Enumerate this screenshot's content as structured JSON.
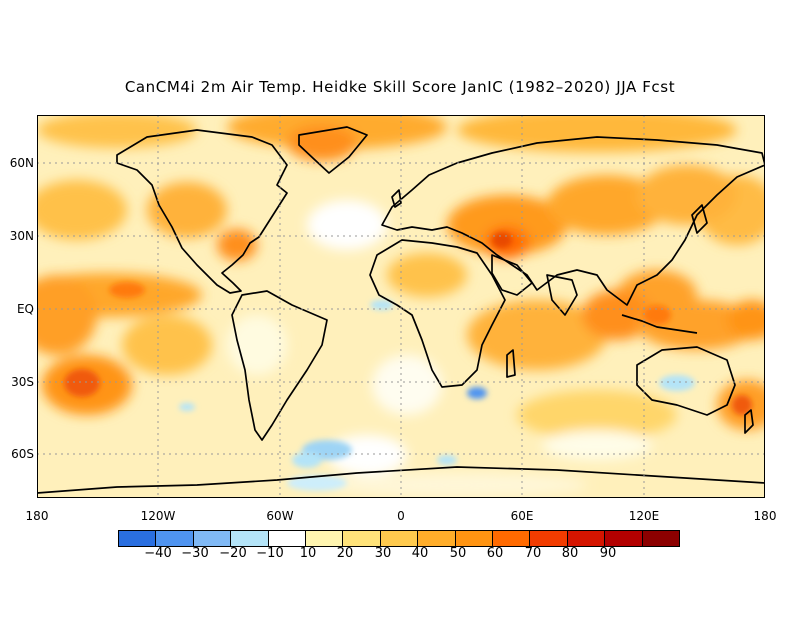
{
  "title": "CanCM4i 2m Air Temp. Heidke Skill Score JanIC (1982–2020) JJA Fcst",
  "lat_labels": [
    "60N",
    "30N",
    "EQ",
    "30S",
    "60S"
  ],
  "lon_labels": [
    "180",
    "120W",
    "60W",
    "0",
    "60E",
    "120E",
    "180"
  ],
  "colorbar": {
    "colors": [
      "#2a6fe0",
      "#4f94f0",
      "#80b9f5",
      "#b4e4f8",
      "#ffffff",
      "#fff5b0",
      "#ffe37a",
      "#ffca4e",
      "#ffad2a",
      "#ff9412",
      "#ff6a00",
      "#f23c00",
      "#d51500",
      "#b30000",
      "#8c0000"
    ],
    "tick_labels": [
      "−40",
      "−30",
      "−20",
      "−10",
      "10",
      "20",
      "30",
      "40",
      "50",
      "60",
      "70",
      "80",
      "90"
    ]
  },
  "map_colors": {
    "ocean_base": "#fff2c0",
    "land_base": "#ffe08a"
  }
}
